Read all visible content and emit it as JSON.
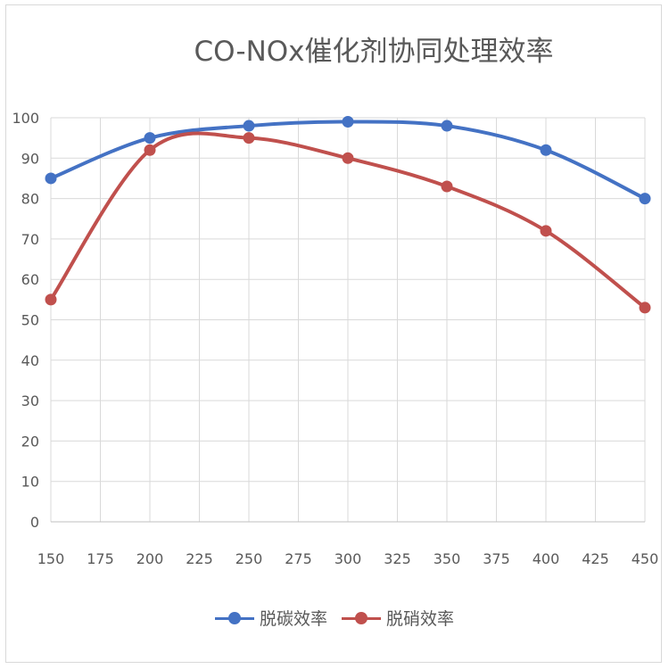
{
  "chart_data": {
    "type": "line",
    "title": "CO-NOx催化剂协同处理效率",
    "xlabel": "",
    "ylabel": "",
    "x_ticks": [
      "150",
      "175",
      "200",
      "225",
      "250",
      "275",
      "300",
      "325",
      "350",
      "375",
      "400",
      "425",
      "450"
    ],
    "y_ticks": [
      "0",
      "10",
      "20",
      "30",
      "40",
      "50",
      "60",
      "70",
      "80",
      "90",
      "100"
    ],
    "xlim": [
      150,
      450
    ],
    "ylim": [
      0,
      100
    ],
    "grid": true,
    "legend_position": "bottom",
    "series": [
      {
        "name": "脱碳效率",
        "color": "#4472c4",
        "points": [
          [
            150,
            85
          ],
          [
            200,
            95
          ],
          [
            250,
            98
          ],
          [
            300,
            99
          ],
          [
            350,
            98
          ],
          [
            400,
            92
          ],
          [
            450,
            80
          ]
        ]
      },
      {
        "name": "脱硝效率",
        "color": "#c0504d",
        "points": [
          [
            150,
            55
          ],
          [
            200,
            92
          ],
          [
            250,
            95
          ],
          [
            300,
            90
          ],
          [
            350,
            83
          ],
          [
            400,
            72
          ],
          [
            450,
            53
          ]
        ]
      }
    ]
  }
}
